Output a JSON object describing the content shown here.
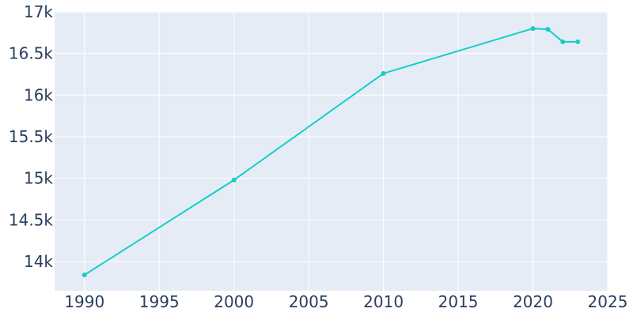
{
  "chart_data": {
    "type": "line",
    "title": "",
    "xlabel": "",
    "ylabel": "",
    "xlim": [
      1988,
      2025
    ],
    "ylim": [
      13650,
      17000
    ],
    "grid": true,
    "x_ticks": [
      1990,
      1995,
      2000,
      2005,
      2010,
      2015,
      2020,
      2025
    ],
    "x_tick_labels": [
      "1990",
      "1995",
      "2000",
      "2005",
      "2010",
      "2015",
      "2020",
      "2025"
    ],
    "y_ticks": [
      14000,
      14500,
      15000,
      15500,
      16000,
      16500,
      17000
    ],
    "y_tick_labels": [
      "14k",
      "14.5k",
      "15k",
      "15.5k",
      "16k",
      "16.5k",
      "17k"
    ],
    "series": [
      {
        "x": [
          1990,
          2000,
          2010,
          2020,
          2021,
          2022,
          2023
        ],
        "y": [
          13840,
          14980,
          16260,
          16800,
          16790,
          16640,
          16640
        ]
      }
    ],
    "colors": {
      "plot_bg": "#e5ecf6",
      "grid": "#ffffff",
      "line": "#17cdc6",
      "text": "#2a3f5f"
    }
  }
}
